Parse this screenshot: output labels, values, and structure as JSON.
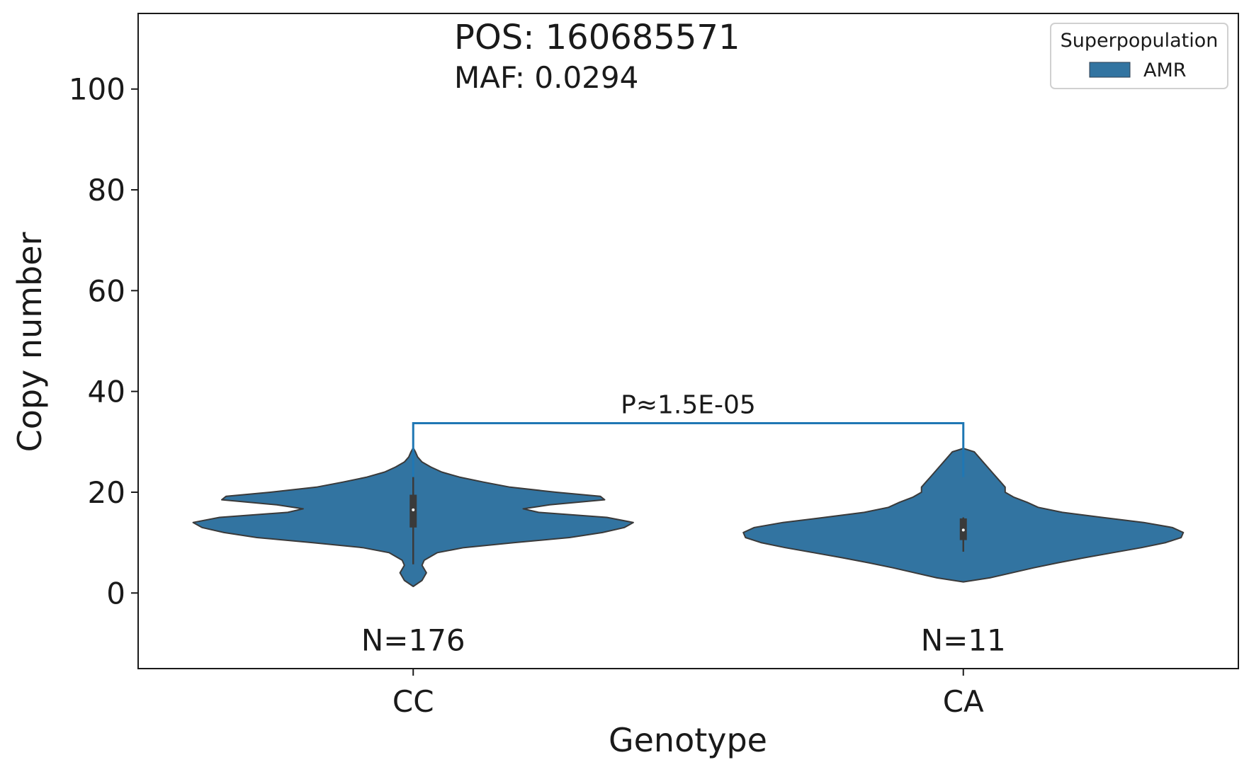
{
  "chart_data": {
    "type": "violin",
    "annotations": {
      "position": "POS: 160685571",
      "maf": "MAF: 0.0294"
    },
    "xlabel": "Genotype",
    "ylabel": "Copy number",
    "categories": [
      "CC",
      "CA"
    ],
    "ylim": [
      -15,
      115
    ],
    "yticks": [
      0,
      20,
      40,
      60,
      80,
      100
    ],
    "grid": false,
    "legend": {
      "title": "Superpopulation",
      "placement": "top-right",
      "entries": [
        {
          "label": "AMR",
          "color": "#3274a1"
        }
      ]
    },
    "series": [
      {
        "name": "AMR",
        "color": "#3274a1",
        "violins": [
          {
            "category": "CC",
            "n_label": "N=176",
            "min": 1.3,
            "max": 28.8,
            "density": [
              [
                1.3,
                0.0
              ],
              [
                2.5,
                0.04
              ],
              [
                4,
                0.06
              ],
              [
                5.5,
                0.04
              ],
              [
                6.5,
                0.05
              ],
              [
                8,
                0.11
              ],
              [
                9,
                0.23
              ],
              [
                10,
                0.46
              ],
              [
                11,
                0.71
              ],
              [
                12,
                0.86
              ],
              [
                13,
                0.96
              ],
              [
                14,
                1.0
              ],
              [
                15,
                0.88
              ],
              [
                16,
                0.57
              ],
              [
                16.7,
                0.5
              ],
              [
                17.5,
                0.62
              ],
              [
                18.5,
                0.87
              ],
              [
                19.2,
                0.85
              ],
              [
                20,
                0.65
              ],
              [
                21,
                0.44
              ],
              [
                22,
                0.32
              ],
              [
                23,
                0.21
              ],
              [
                24,
                0.13
              ],
              [
                25,
                0.08
              ],
              [
                26,
                0.04
              ],
              [
                27,
                0.02
              ],
              [
                28,
                0.01
              ],
              [
                28.8,
                0.0
              ]
            ],
            "whisker": [
              5.7,
              25.7
            ],
            "box": [
              13,
              19.5
            ],
            "median": 16.5
          },
          {
            "category": "CA",
            "n_label": "N=11",
            "min": 2.2,
            "max": 28.7,
            "density": [
              [
                2.2,
                0.0
              ],
              [
                3,
                0.12
              ],
              [
                4,
                0.22
              ],
              [
                5,
                0.32
              ],
              [
                6,
                0.43
              ],
              [
                7,
                0.55
              ],
              [
                8,
                0.68
              ],
              [
                9,
                0.81
              ],
              [
                10,
                0.92
              ],
              [
                11,
                0.99
              ],
              [
                12,
                1.0
              ],
              [
                13,
                0.95
              ],
              [
                14,
                0.82
              ],
              [
                15,
                0.63
              ],
              [
                16,
                0.45
              ],
              [
                17,
                0.34
              ],
              [
                18,
                0.29
              ],
              [
                19,
                0.23
              ],
              [
                20,
                0.19
              ],
              [
                21,
                0.19
              ],
              [
                22,
                0.17
              ],
              [
                23,
                0.15
              ],
              [
                24,
                0.13
              ],
              [
                25,
                0.11
              ],
              [
                26,
                0.09
              ],
              [
                27,
                0.07
              ],
              [
                28,
                0.05
              ],
              [
                28.7,
                0.0
              ]
            ],
            "whisker": [
              8.2,
              15
            ],
            "box": [
              10.5,
              14.8
            ],
            "median": 12.5
          }
        ]
      }
    ],
    "significance": {
      "from": "CC",
      "to": "CA",
      "y": 33.7,
      "drop_to": 23,
      "label": "P≈1.5E-05",
      "color": "#1f77b4"
    }
  }
}
